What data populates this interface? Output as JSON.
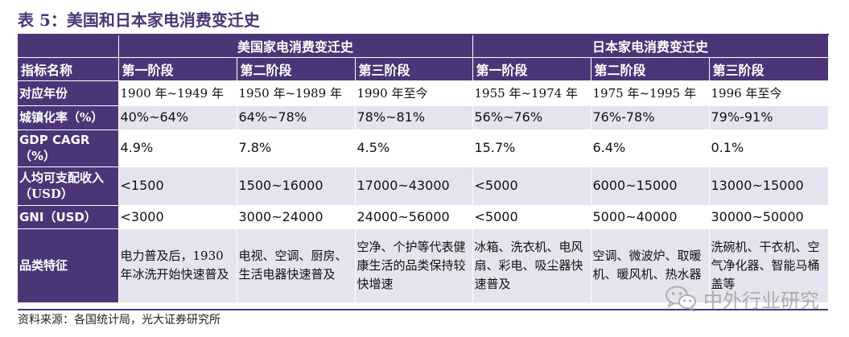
{
  "title": "表 5：美国和日本家电消费变迁史",
  "groups": {
    "us": "美国家电消费变迁史",
    "jp": "日本家电消费变迁史"
  },
  "header": {
    "label": "指标名称",
    "stages": [
      "第一阶段",
      "第二阶段",
      "第三阶段",
      "第一阶段",
      "第二阶段",
      "第三阶段"
    ]
  },
  "rows": [
    {
      "label": "对应年份",
      "values": [
        "1900 年~1949 年",
        "1950 年~1989 年",
        "1990 年至今",
        "1955 年~1974 年",
        "1975 年~1995 年",
        "1996 年至今"
      ]
    },
    {
      "label": "城镇化率（%）",
      "values": [
        "40%~64%",
        "64%~78%",
        "78%~81%",
        "56%~76%",
        "76%-78%",
        "79%-91%"
      ]
    },
    {
      "label": "GDP CAGR（%）",
      "values": [
        "4.9%",
        "7.8%",
        "4.5%",
        "15.7%",
        "6.4%",
        "0.1%"
      ]
    },
    {
      "label": "人均可支配收入（USD）",
      "values": [
        "<1500",
        "1500~16000",
        "17000~43000",
        "<5000",
        "6000~15000",
        "13000~15000"
      ]
    },
    {
      "label": "GNI（USD）",
      "values": [
        "<3000",
        "3000~24000",
        "24000~56000",
        "<5000",
        "5000~40000",
        "30000~50000"
      ]
    },
    {
      "label": "品类特征",
      "values": [
        "电力普及后，1930 年冰洗开始快速普及",
        "电视、空调、厨房、生活电器快速普及",
        "空净、个护等代表健康生活的品类保持较快增速",
        "冰箱、洗衣机、电风扇、彩电、吸尘器快速普及",
        "空调、微波炉、取暖机、暖风机、热水器",
        "洗碗机、干衣机、空气净化器、智能马桶盖等"
      ]
    }
  ],
  "source": "资料来源：各国统计局，光大证券研究所",
  "watermark": {
    "text": "中外行业研究",
    "icon": "wechat-icon"
  },
  "colors": {
    "header_bg": "#4b3577",
    "zebra_bg": "#e6e3ee",
    "title": "#4b3577"
  }
}
